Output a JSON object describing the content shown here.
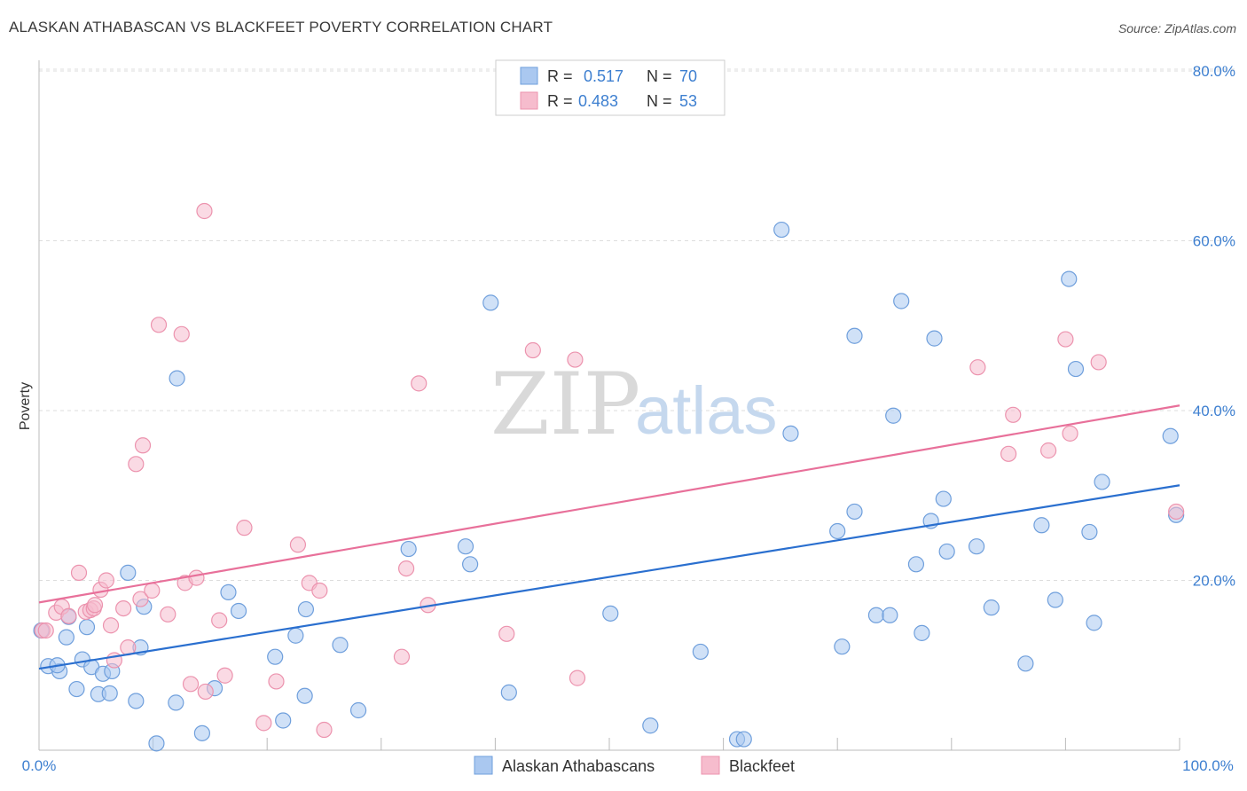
{
  "title": "ALASKAN ATHABASCAN VS BLACKFEET POVERTY CORRELATION CHART",
  "source": "Source: ZipAtlas.com",
  "watermark": {
    "zip": "ZIP",
    "atlas": "atlas"
  },
  "colors": {
    "blue_fill": "#aac8f0",
    "blue_stroke": "#6f9fdc",
    "blue_line": "#2a6fcf",
    "pink_fill": "#f6bccd",
    "pink_stroke": "#ec93ae",
    "pink_line": "#e8709a",
    "tick_text": "#3d7fd0",
    "grid": "#dddddd"
  },
  "legend": {
    "rows": [
      {
        "r_label": "R = ",
        "r_value": "0.517",
        "n_label": "N = ",
        "n_value": "70"
      },
      {
        "r_label": "R = ",
        "r_value": "0.483",
        "n_label": "N = ",
        "n_value": "53"
      }
    ]
  },
  "chart_data": {
    "type": "scatter",
    "xlabel": "",
    "ylabel": "Poverty",
    "xlim": [
      0,
      100
    ],
    "ylim": [
      0,
      80
    ],
    "x_ticks": [
      "0.0%",
      "100.0%"
    ],
    "y_ticks": [
      {
        "value": 20,
        "label": "20.0%"
      },
      {
        "value": 40,
        "label": "40.0%"
      },
      {
        "value": 60,
        "label": "60.0%"
      },
      {
        "value": 80,
        "label": "80.0%"
      }
    ],
    "grid": true,
    "series": [
      {
        "name": "Alaskan Athabascans",
        "r": 0.517,
        "n": 70,
        "trend": {
          "x": [
            0,
            100
          ],
          "y": [
            9.6,
            31.2
          ]
        },
        "points": [
          [
            0.2,
            14.1
          ],
          [
            0.8,
            9.9
          ],
          [
            1.8,
            9.3
          ],
          [
            2.4,
            13.3
          ],
          [
            2.6,
            15.7
          ],
          [
            3.3,
            7.2
          ],
          [
            3.8,
            10.7
          ],
          [
            4.2,
            14.5
          ],
          [
            4.6,
            9.8
          ],
          [
            5.2,
            6.6
          ],
          [
            5.6,
            9.0
          ],
          [
            6.2,
            6.7
          ],
          [
            6.4,
            9.3
          ],
          [
            7.8,
            20.9
          ],
          [
            8.5,
            5.8
          ],
          [
            8.9,
            12.1
          ],
          [
            9.2,
            16.9
          ],
          [
            10.3,
            0.8
          ],
          [
            12.0,
            5.6
          ],
          [
            12.1,
            43.8
          ],
          [
            14.3,
            2.0
          ],
          [
            15.4,
            7.3
          ],
          [
            16.6,
            18.6
          ],
          [
            17.5,
            16.4
          ],
          [
            20.7,
            11.0
          ],
          [
            21.4,
            3.5
          ],
          [
            22.5,
            13.5
          ],
          [
            23.3,
            6.4
          ],
          [
            23.4,
            16.6
          ],
          [
            26.4,
            12.4
          ],
          [
            28.0,
            4.7
          ],
          [
            32.4,
            23.7
          ],
          [
            37.4,
            24.0
          ],
          [
            37.8,
            21.9
          ],
          [
            39.6,
            52.7
          ],
          [
            41.2,
            6.8
          ],
          [
            50.1,
            16.1
          ],
          [
            53.6,
            2.9
          ],
          [
            58.0,
            11.6
          ],
          [
            61.2,
            1.3
          ],
          [
            61.8,
            1.3
          ],
          [
            65.1,
            61.3
          ],
          [
            65.9,
            37.3
          ],
          [
            70.0,
            25.8
          ],
          [
            70.4,
            12.2
          ],
          [
            71.5,
            28.1
          ],
          [
            71.5,
            48.8
          ],
          [
            73.4,
            15.9
          ],
          [
            74.6,
            15.9
          ],
          [
            74.9,
            39.4
          ],
          [
            75.6,
            52.9
          ],
          [
            76.9,
            21.9
          ],
          [
            77.4,
            13.8
          ],
          [
            78.2,
            27.0
          ],
          [
            78.5,
            48.5
          ],
          [
            79.3,
            29.6
          ],
          [
            79.6,
            23.4
          ],
          [
            82.2,
            24.0
          ],
          [
            83.5,
            16.8
          ],
          [
            86.5,
            10.2
          ],
          [
            87.9,
            26.5
          ],
          [
            89.1,
            17.7
          ],
          [
            90.3,
            55.5
          ],
          [
            90.9,
            44.9
          ],
          [
            92.1,
            25.7
          ],
          [
            92.5,
            15.0
          ],
          [
            93.2,
            31.6
          ],
          [
            99.2,
            37.0
          ],
          [
            99.7,
            27.7
          ],
          [
            1.6,
            10.0
          ]
        ]
      },
      {
        "name": "Blackfeet",
        "r": 0.483,
        "n": 53,
        "trend": {
          "x": [
            0,
            100
          ],
          "y": [
            17.4,
            40.6
          ]
        },
        "points": [
          [
            0.3,
            14.1
          ],
          [
            0.6,
            14.1
          ],
          [
            1.5,
            16.2
          ],
          [
            2.0,
            16.9
          ],
          [
            2.6,
            15.8
          ],
          [
            3.5,
            20.9
          ],
          [
            4.1,
            16.3
          ],
          [
            4.5,
            16.5
          ],
          [
            4.8,
            16.7
          ],
          [
            4.9,
            17.1
          ],
          [
            5.4,
            18.9
          ],
          [
            5.9,
            20.0
          ],
          [
            6.3,
            14.7
          ],
          [
            6.6,
            10.6
          ],
          [
            7.4,
            16.7
          ],
          [
            7.8,
            12.1
          ],
          [
            8.5,
            33.7
          ],
          [
            8.9,
            17.8
          ],
          [
            9.1,
            35.9
          ],
          [
            9.9,
            18.8
          ],
          [
            10.5,
            50.1
          ],
          [
            11.3,
            16.0
          ],
          [
            12.5,
            49.0
          ],
          [
            12.8,
            19.7
          ],
          [
            13.3,
            7.8
          ],
          [
            13.8,
            20.3
          ],
          [
            14.5,
            63.5
          ],
          [
            14.6,
            6.9
          ],
          [
            15.8,
            15.3
          ],
          [
            16.3,
            8.8
          ],
          [
            18.0,
            26.2
          ],
          [
            19.7,
            3.2
          ],
          [
            20.8,
            8.1
          ],
          [
            22.7,
            24.2
          ],
          [
            23.7,
            19.7
          ],
          [
            24.6,
            18.8
          ],
          [
            25.0,
            2.4
          ],
          [
            31.8,
            11.0
          ],
          [
            32.2,
            21.4
          ],
          [
            33.3,
            43.2
          ],
          [
            34.1,
            17.1
          ],
          [
            41.0,
            13.7
          ],
          [
            43.3,
            47.1
          ],
          [
            47.0,
            46.0
          ],
          [
            47.2,
            8.5
          ],
          [
            82.3,
            45.1
          ],
          [
            85.0,
            34.9
          ],
          [
            85.4,
            39.5
          ],
          [
            88.5,
            35.3
          ],
          [
            90.0,
            48.4
          ],
          [
            90.4,
            37.3
          ],
          [
            92.9,
            45.7
          ],
          [
            99.7,
            28.1
          ]
        ]
      }
    ]
  },
  "bottom_legend": [
    {
      "label": "Alaskan Athabascans"
    },
    {
      "label": "Blackfeet"
    }
  ]
}
